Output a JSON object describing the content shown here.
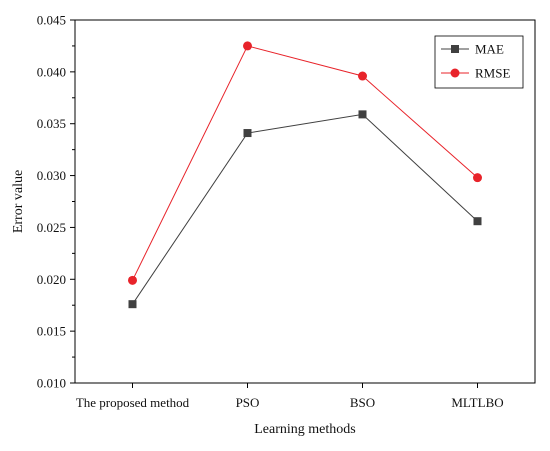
{
  "chart_data": {
    "type": "line",
    "title": "",
    "xlabel": "Learning methods",
    "ylabel": "Error value",
    "categories": [
      "The proposed method",
      "PSO",
      "BSO",
      "MLTLBO"
    ],
    "ylim": [
      0.01,
      0.045
    ],
    "yticks": [
      "0.010",
      "0.015",
      "0.020",
      "0.025",
      "0.030",
      "0.035",
      "0.040",
      "0.045"
    ],
    "grid": false,
    "legend_position": "top-right",
    "series": [
      {
        "name": "MAE",
        "values": [
          0.0176,
          0.0341,
          0.0359,
          0.0256
        ],
        "color": "#404040",
        "marker": "square"
      },
      {
        "name": "RMSE",
        "values": [
          0.0199,
          0.0425,
          0.0396,
          0.0298
        ],
        "color": "#e8232a",
        "marker": "circle"
      }
    ]
  }
}
